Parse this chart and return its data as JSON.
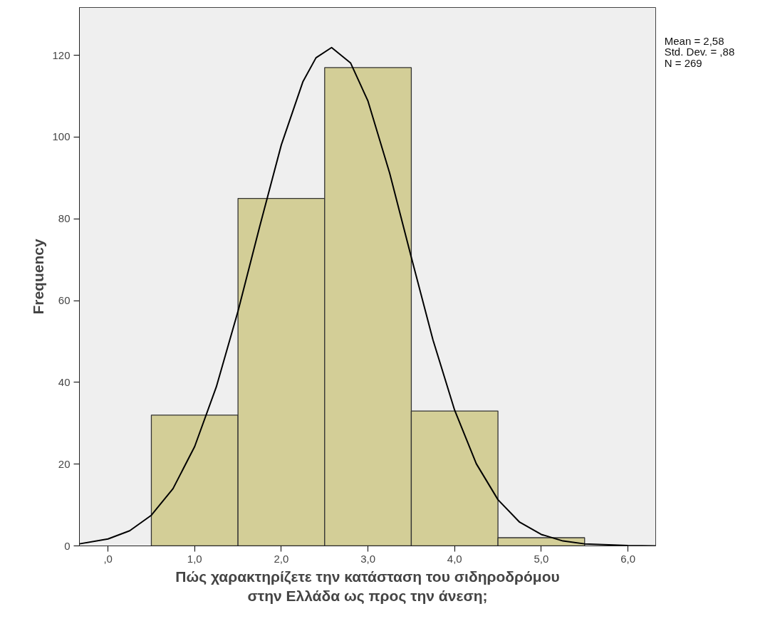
{
  "chart_data": {
    "type": "histogram",
    "xlabel": "Πώς χαρακτηρίζετε την κατάσταση του σιδηροδρόμου\nστην Ελλάδα ως προς την άνεση;",
    "ylabel": "Frequency",
    "bins": [
      0.5,
      1.5,
      2.5,
      3.5,
      4.5,
      5.5
    ],
    "values": [
      32,
      85,
      117,
      33,
      2
    ],
    "color": "#d3ce97",
    "series": [
      {
        "type": "line",
        "color": "#000000",
        "x": [
          -0.33,
          0,
          0.25,
          0.5,
          0.75,
          1,
          1.25,
          1.5,
          1.75,
          2,
          2.25,
          2.4,
          2.58,
          2.8,
          3,
          3.25,
          3.5,
          3.75,
          4,
          4.25,
          4.5,
          4.75,
          5,
          5.25,
          5.5,
          6,
          6.32
        ],
        "values": [
          0.5,
          1.7,
          3.7,
          7.5,
          14,
          24.3,
          38.9,
          57.4,
          78.1,
          98.1,
          113.6,
          119.4,
          121.9,
          118.1,
          108.8,
          91.2,
          70.6,
          50.4,
          33.2,
          20.1,
          11.3,
          5.8,
          2.8,
          1.2,
          0.5,
          0.1,
          0
        ]
      }
    ],
    "xlim": [
      -0.33,
      6.32
    ],
    "ylim": [
      0,
      131.7
    ],
    "xticks": [
      {
        "value": 0,
        "label": ",0"
      },
      {
        "value": 1,
        "label": "1,0"
      },
      {
        "value": 2,
        "label": "2,0"
      },
      {
        "value": 3,
        "label": "3,0"
      },
      {
        "value": 4,
        "label": "4,0"
      },
      {
        "value": 5,
        "label": "5,0"
      },
      {
        "value": 6,
        "label": "6,0"
      }
    ],
    "yticks": [
      0,
      20,
      40,
      60,
      80,
      100,
      120
    ],
    "grid": false,
    "annotations": [
      "Mean = 2,58",
      "Std. Dev. = ,88",
      "N = 269"
    ]
  }
}
